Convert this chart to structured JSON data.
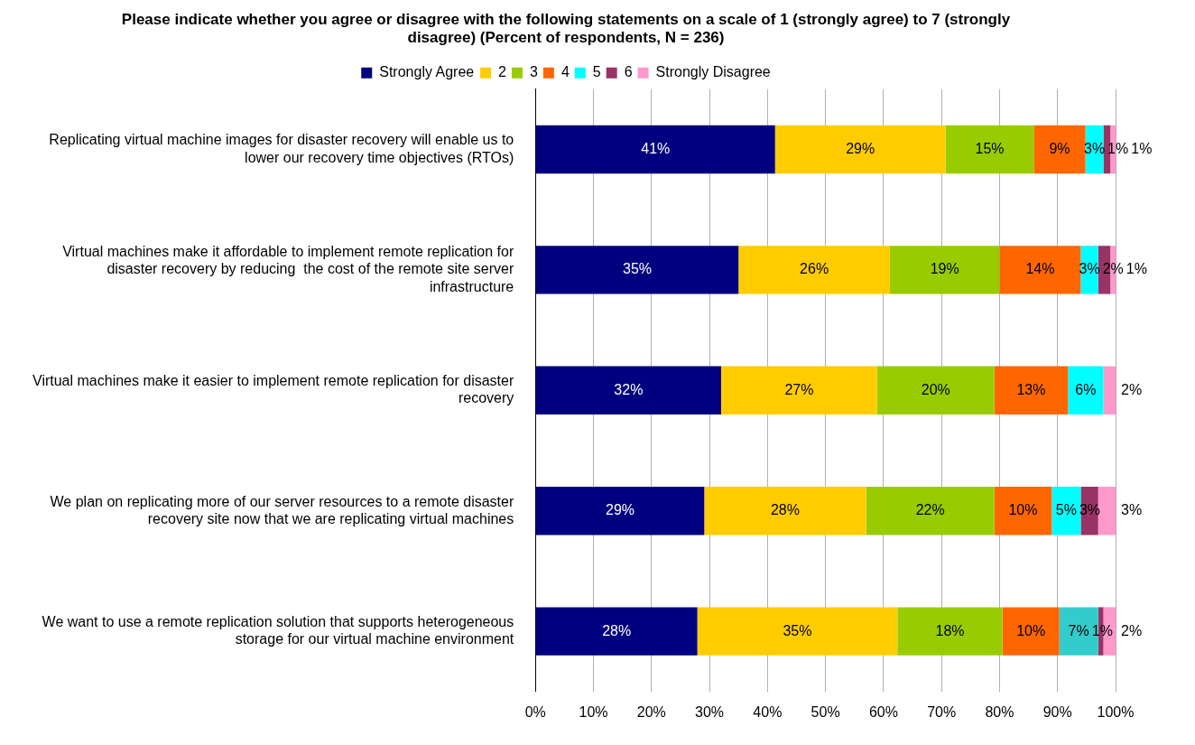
{
  "chart_data": {
    "type": "bar",
    "orientation": "horizontal",
    "stacked": true,
    "title": "Please indicate whether you agree or disagree with the following statements on a scale of 1 (strongly agree) to 7 (strongly disagree) (Percent of respondents, N = 236)",
    "categories": [
      "Replicating virtual machine images for disaster recovery will enable us to lower our recovery time objectives (RTOs)",
      "Virtual machines make it affordable to implement remote replication for disaster recovery by reducing  the cost of the remote site server infrastructure",
      "Virtual machines make it easier to implement remote replication for disaster recovery",
      "We plan on replicating more of our server resources to a remote disaster recovery site now that we are replicating virtual machines",
      "We want to use a remote replication solution that supports heterogeneous storage for our virtual machine environment"
    ],
    "series": [
      {
        "name": "Strongly Agree",
        "color": "#000080",
        "values": [
          41.3,
          35.0,
          32.0,
          29.1,
          27.9
        ],
        "value_labels": [
          "41%",
          "35%",
          "32%",
          "29%",
          "28%"
        ]
      },
      {
        "name": "2",
        "color": "#ffcc00",
        "values": [
          29.4,
          26.1,
          26.9,
          27.9,
          34.5
        ],
        "value_labels": [
          "29%",
          "26%",
          "27%",
          "28%",
          "35%"
        ]
      },
      {
        "name": "3",
        "color": "#99cc00",
        "values": [
          15.2,
          18.9,
          20.2,
          22.1,
          18.1
        ],
        "value_labels": [
          "15%",
          "19%",
          "20%",
          "22%",
          "18%"
        ]
      },
      {
        "name": "4",
        "color": "#ff6600",
        "values": [
          8.9,
          14.0,
          12.7,
          9.9,
          9.8
        ],
        "value_labels": [
          "9%",
          "14%",
          "13%",
          "10%",
          "10%"
        ]
      },
      {
        "name": "5",
        "color": "#00ffff",
        "colors": [
          "#00ffff",
          "#00ffff",
          "#00ffff",
          "#00ffff",
          "#33cccc"
        ],
        "values": [
          3.1,
          3.0,
          6.1,
          5.0,
          6.7
        ],
        "value_labels": [
          "3%",
          "3%",
          "6%",
          "5%",
          "7%"
        ]
      },
      {
        "name": "6",
        "color": "#993366",
        "values": [
          1.2,
          2.1,
          null,
          3.0,
          0.9
        ],
        "value_labels": [
          "1%",
          "2%",
          null,
          "3%",
          "1%"
        ]
      },
      {
        "name": "Strongly Disagree",
        "color": "#ff99cc",
        "values": [
          0.9,
          0.9,
          2.1,
          3.0,
          2.1
        ],
        "value_labels": [
          "1%",
          "1%",
          "2%",
          "3%",
          "2%"
        ]
      }
    ],
    "xlim": [
      0,
      100
    ],
    "xticks": [
      {
        "value": 0,
        "label": "0%"
      },
      {
        "value": 10,
        "label": "10%"
      },
      {
        "value": 20,
        "label": "20%"
      },
      {
        "value": 30,
        "label": "30%"
      },
      {
        "value": 40,
        "label": "40%"
      },
      {
        "value": 50,
        "label": "50%"
      },
      {
        "value": 60,
        "label": "60%"
      },
      {
        "value": 70,
        "label": "70%"
      },
      {
        "value": 80,
        "label": "80%"
      },
      {
        "value": 90,
        "label": "90%"
      },
      {
        "value": 100,
        "label": "100%"
      }
    ],
    "grid": "x",
    "legend": "top"
  }
}
